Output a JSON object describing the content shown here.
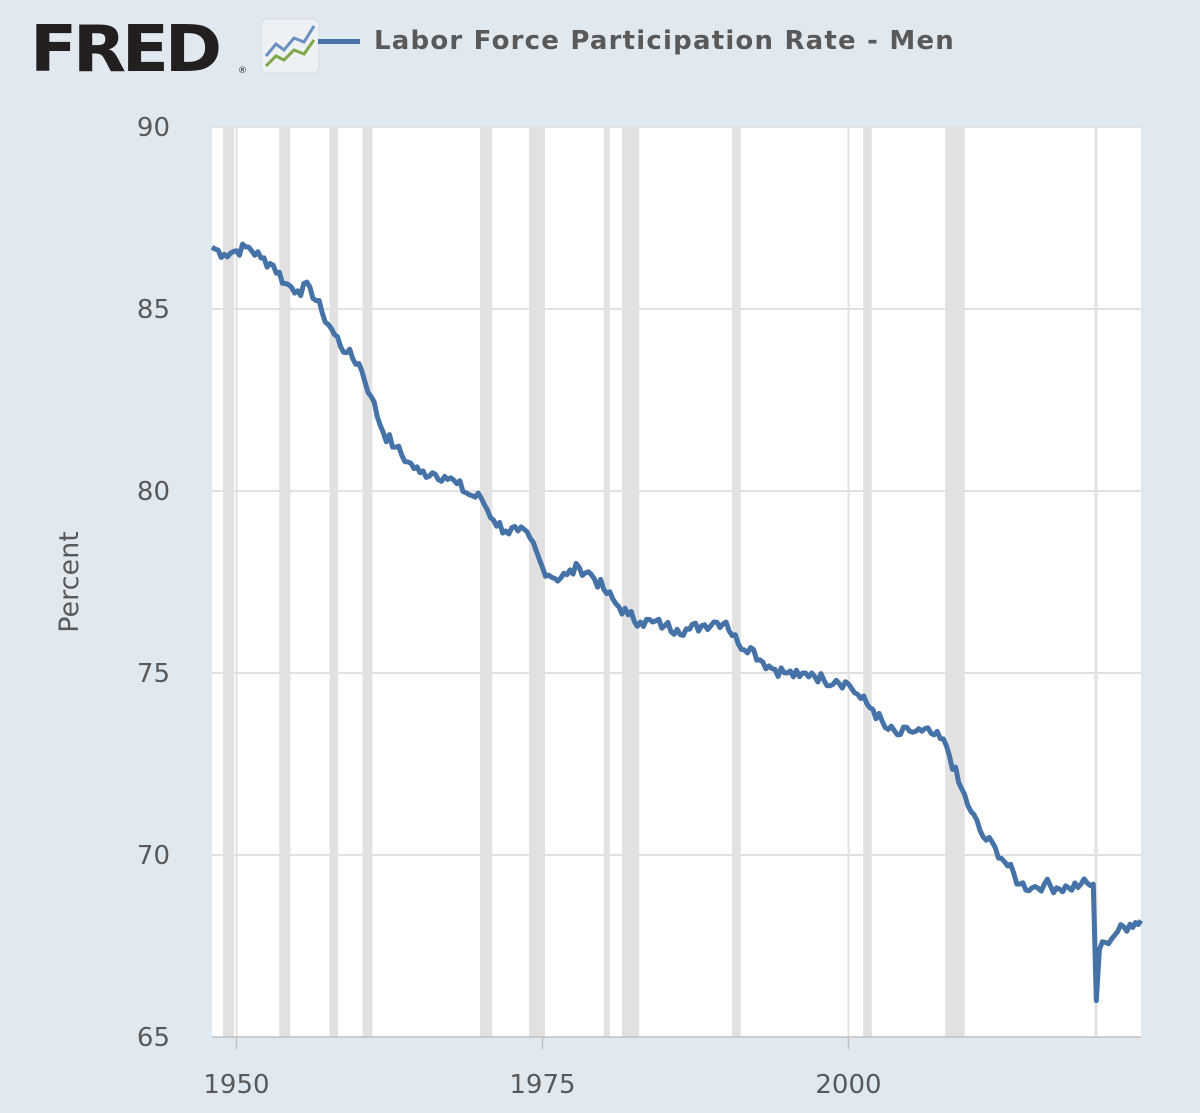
{
  "header": {
    "logo_text": "FRED",
    "logo_registered": "®",
    "legend_label": "Labor Force Participation Rate - Men"
  },
  "colors": {
    "background": "#e1e9f0",
    "plot_background": "#ffffff",
    "line": "#4572a7",
    "recession": "#e1e1e1",
    "grid": "#e1e1e1",
    "text": "#595959"
  },
  "chart_data": {
    "type": "line",
    "title": "",
    "ylabel": "Percent",
    "xlabel": "",
    "xlim": [
      1948,
      2023.9
    ],
    "ylim": [
      65,
      90
    ],
    "x_ticks": [
      1950,
      1975,
      2000
    ],
    "y_ticks": [
      65,
      70,
      75,
      80,
      85,
      90
    ],
    "grid": true,
    "legend": "top",
    "recessions": [
      [
        1948.9,
        1949.8
      ],
      [
        1953.5,
        1954.4
      ],
      [
        1957.6,
        1958.3
      ],
      [
        1960.3,
        1961.1
      ],
      [
        1969.9,
        1970.9
      ],
      [
        1973.9,
        1975.2
      ],
      [
        1980.0,
        1980.5
      ],
      [
        1981.5,
        1982.9
      ],
      [
        1990.5,
        1991.2
      ],
      [
        2001.2,
        2001.9
      ],
      [
        2007.9,
        2009.5
      ],
      [
        2020.1,
        2020.3
      ]
    ],
    "series": [
      {
        "name": "Labor Force Participation Rate - Men",
        "x": [
          1948.0,
          1949.0,
          1950.0,
          1951.0,
          1952.0,
          1953.0,
          1954.0,
          1955.0,
          1956.0,
          1957.0,
          1958.0,
          1959.0,
          1960.0,
          1961.0,
          1962.0,
          1963.0,
          1964.0,
          1965.0,
          1966.0,
          1967.0,
          1968.0,
          1969.0,
          1970.0,
          1971.0,
          1972.0,
          1973.0,
          1974.0,
          1975.0,
          1976.0,
          1977.0,
          1978.0,
          1979.0,
          1980.0,
          1981.0,
          1982.0,
          1983.0,
          1984.0,
          1985.0,
          1986.0,
          1987.0,
          1988.0,
          1989.0,
          1990.0,
          1991.0,
          1992.0,
          1993.0,
          1994.0,
          1995.0,
          1996.0,
          1997.0,
          1998.0,
          1999.0,
          2000.0,
          2001.0,
          2002.0,
          2003.0,
          2004.0,
          2005.0,
          2006.0,
          2007.0,
          2008.0,
          2009.0,
          2010.0,
          2011.0,
          2012.0,
          2013.0,
          2014.0,
          2015.0,
          2016.0,
          2017.0,
          2018.0,
          2019.0,
          2020.0,
          2020.25,
          2020.5,
          2021.0,
          2022.0,
          2023.0,
          2023.9
        ],
        "values": [
          86.7,
          86.5,
          86.6,
          86.7,
          86.4,
          86.2,
          85.7,
          85.5,
          85.6,
          84.9,
          84.3,
          83.8,
          83.5,
          82.6,
          81.6,
          81.2,
          80.8,
          80.5,
          80.5,
          80.4,
          80.2,
          79.9,
          79.8,
          79.2,
          78.9,
          78.9,
          78.7,
          77.9,
          77.6,
          77.7,
          77.9,
          77.7,
          77.3,
          76.9,
          76.6,
          76.4,
          76.4,
          76.3,
          76.2,
          76.2,
          76.3,
          76.4,
          76.4,
          75.8,
          75.7,
          75.3,
          75.1,
          75.0,
          74.9,
          75.0,
          74.8,
          74.8,
          74.7,
          74.3,
          74.0,
          73.5,
          73.3,
          73.4,
          73.4,
          73.3,
          73.0,
          72.0,
          71.2,
          70.5,
          70.2,
          69.7,
          69.2,
          69.1,
          69.2,
          69.1,
          69.1,
          69.2,
          69.2,
          66.0,
          67.4,
          67.6,
          67.9,
          68.1,
          68.2
        ]
      }
    ]
  }
}
